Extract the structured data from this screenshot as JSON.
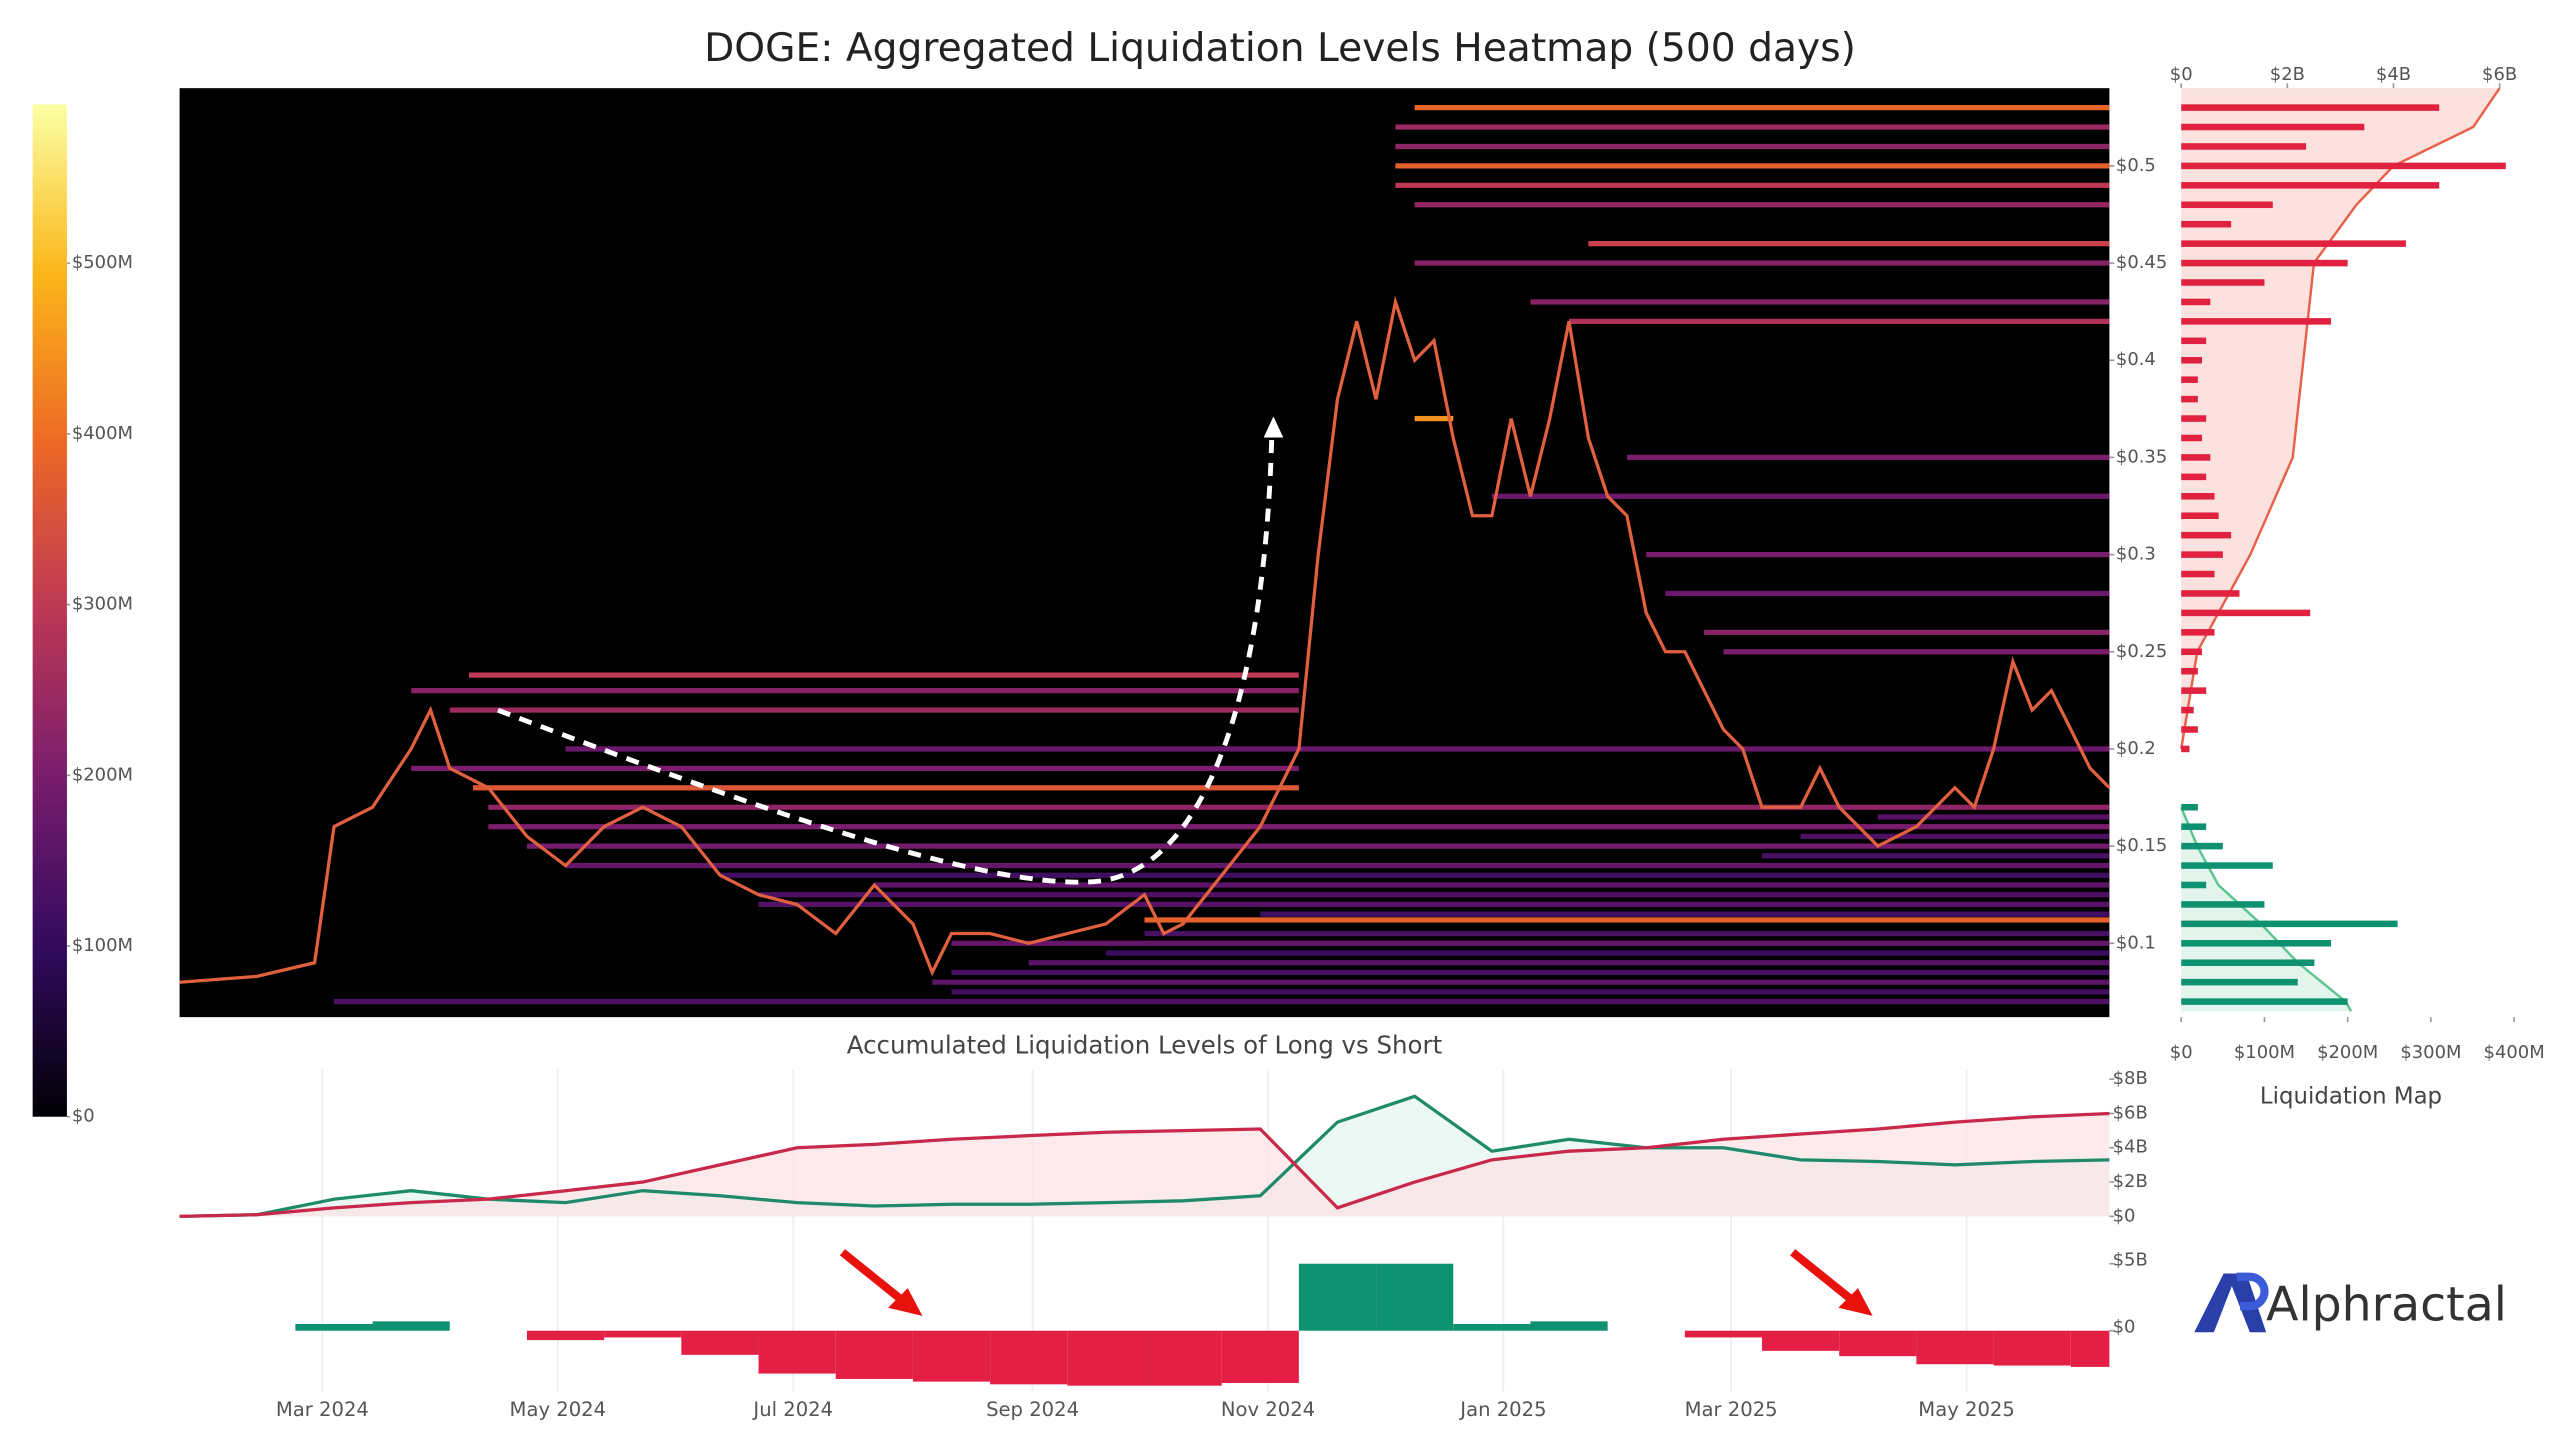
{
  "chart_data": [
    {
      "type": "heatmap",
      "title": "DOGE: Aggregated Liquidation Levels Heatmap (500 days)",
      "color": "#e0603f",
      "xlim": [
        0,
        500
      ],
      "ylim": [
        0.062,
        0.54
      ],
      "yticks": [
        {
          "value": 0.1,
          "label": "$0.1"
        },
        {
          "value": 0.15,
          "label": "$0.15"
        },
        {
          "value": 0.2,
          "label": "$0.2"
        },
        {
          "value": 0.25,
          "label": "$0.25"
        },
        {
          "value": 0.3,
          "label": "$0.3"
        },
        {
          "value": 0.35,
          "label": "$0.35"
        },
        {
          "value": 0.4,
          "label": "$0.4"
        },
        {
          "value": 0.45,
          "label": "$0.45"
        },
        {
          "value": 0.5,
          "label": "$0.5"
        }
      ],
      "x": [
        0,
        20,
        35,
        40,
        50,
        60,
        65,
        70,
        80,
        90,
        100,
        110,
        120,
        130,
        140,
        150,
        160,
        170,
        180,
        190,
        195,
        200,
        210,
        220,
        230,
        240,
        250,
        255,
        260,
        270,
        280,
        290,
        295,
        300,
        305,
        310,
        315,
        320,
        325,
        330,
        335,
        340,
        345,
        350,
        355,
        360,
        365,
        370,
        375,
        380,
        385,
        390,
        395,
        400,
        405,
        410,
        420,
        425,
        430,
        440,
        450,
        460,
        465,
        470,
        475,
        480,
        485,
        490,
        495,
        500
      ],
      "values": [
        0.08,
        0.083,
        0.09,
        0.16,
        0.17,
        0.2,
        0.22,
        0.19,
        0.18,
        0.155,
        0.14,
        0.16,
        0.17,
        0.16,
        0.135,
        0.125,
        0.12,
        0.105,
        0.13,
        0.11,
        0.085,
        0.105,
        0.105,
        0.1,
        0.105,
        0.11,
        0.125,
        0.105,
        0.11,
        0.135,
        0.16,
        0.2,
        0.3,
        0.38,
        0.42,
        0.38,
        0.43,
        0.4,
        0.41,
        0.36,
        0.32,
        0.32,
        0.37,
        0.33,
        0.37,
        0.42,
        0.36,
        0.33,
        0.32,
        0.27,
        0.25,
        0.25,
        0.23,
        0.21,
        0.2,
        0.17,
        0.17,
        0.19,
        0.17,
        0.15,
        0.16,
        0.18,
        0.17,
        0.2,
        0.245,
        0.22,
        0.23,
        0.21,
        0.19,
        0.18
      ],
      "levels": [
        {
          "price": 0.07,
          "value": 140,
          "start": 40,
          "end": 500
        },
        {
          "price": 0.075,
          "value": 120,
          "start": 200,
          "end": 500
        },
        {
          "price": 0.08,
          "value": 160,
          "start": 195,
          "end": 500
        },
        {
          "price": 0.085,
          "value": 130,
          "start": 200,
          "end": 500
        },
        {
          "price": 0.09,
          "value": 150,
          "start": 220,
          "end": 500
        },
        {
          "price": 0.095,
          "value": 110,
          "start": 240,
          "end": 500
        },
        {
          "price": 0.1,
          "value": 170,
          "start": 200,
          "end": 500
        },
        {
          "price": 0.105,
          "value": 130,
          "start": 250,
          "end": 500
        },
        {
          "price": 0.112,
          "value": 380,
          "start": 250,
          "end": 500
        },
        {
          "price": 0.115,
          "value": 120,
          "start": 280,
          "end": 500
        },
        {
          "price": 0.12,
          "value": 150,
          "start": 150,
          "end": 500
        },
        {
          "price": 0.125,
          "value": 140,
          "start": 150,
          "end": 500
        },
        {
          "price": 0.13,
          "value": 160,
          "start": 180,
          "end": 500
        },
        {
          "price": 0.135,
          "value": 120,
          "start": 140,
          "end": 500
        },
        {
          "price": 0.14,
          "value": 170,
          "start": 100,
          "end": 500
        },
        {
          "price": 0.145,
          "value": 130,
          "start": 410,
          "end": 500
        },
        {
          "price": 0.15,
          "value": 190,
          "start": 90,
          "end": 500
        },
        {
          "price": 0.155,
          "value": 140,
          "start": 420,
          "end": 500
        },
        {
          "price": 0.16,
          "value": 200,
          "start": 80,
          "end": 500
        },
        {
          "price": 0.165,
          "value": 150,
          "start": 440,
          "end": 500
        },
        {
          "price": 0.17,
          "value": 230,
          "start": 80,
          "end": 500
        },
        {
          "price": 0.18,
          "value": 360,
          "start": 76,
          "end": 290
        },
        {
          "price": 0.19,
          "value": 200,
          "start": 60,
          "end": 290
        },
        {
          "price": 0.2,
          "value": 180,
          "start": 100,
          "end": 500
        },
        {
          "price": 0.22,
          "value": 250,
          "start": 70,
          "end": 290
        },
        {
          "price": 0.23,
          "value": 220,
          "start": 60,
          "end": 290
        },
        {
          "price": 0.238,
          "value": 300,
          "start": 75,
          "end": 290
        },
        {
          "price": 0.25,
          "value": 200,
          "start": 400,
          "end": 500
        },
        {
          "price": 0.26,
          "value": 220,
          "start": 395,
          "end": 500
        },
        {
          "price": 0.28,
          "value": 180,
          "start": 385,
          "end": 500
        },
        {
          "price": 0.3,
          "value": 200,
          "start": 380,
          "end": 500
        },
        {
          "price": 0.33,
          "value": 180,
          "start": 340,
          "end": 500
        },
        {
          "price": 0.35,
          "value": 200,
          "start": 375,
          "end": 500
        },
        {
          "price": 0.37,
          "value": 450,
          "start": 320,
          "end": 330
        },
        {
          "price": 0.42,
          "value": 280,
          "start": 360,
          "end": 500
        },
        {
          "price": 0.43,
          "value": 220,
          "start": 350,
          "end": 500
        },
        {
          "price": 0.45,
          "value": 220,
          "start": 320,
          "end": 500
        },
        {
          "price": 0.46,
          "value": 320,
          "start": 365,
          "end": 500
        },
        {
          "price": 0.48,
          "value": 240,
          "start": 320,
          "end": 500
        },
        {
          "price": 0.49,
          "value": 300,
          "start": 315,
          "end": 500
        },
        {
          "price": 0.5,
          "value": 380,
          "start": 315,
          "end": 500
        },
        {
          "price": 0.51,
          "value": 230,
          "start": 315,
          "end": 500
        },
        {
          "price": 0.52,
          "value": 250,
          "start": 315,
          "end": 500
        },
        {
          "price": 0.53,
          "value": 390,
          "start": 320,
          "end": 500
        }
      ],
      "colorscale": [
        "#000004",
        "#320a5e",
        "#781c6d",
        "#bc3754",
        "#ed6925",
        "#fbb61a",
        "#fcffa4"
      ],
      "clim": [
        0,
        593
      ],
      "cticks": [
        {
          "value": 0,
          "label": "$0"
        },
        {
          "value": 100,
          "label": "$100M"
        },
        {
          "value": 200,
          "label": "$200M"
        },
        {
          "value": 300,
          "label": "$300M"
        },
        {
          "value": 400,
          "label": "$400M"
        },
        {
          "value": 500,
          "label": "$500M"
        }
      ]
    },
    {
      "type": "hbar",
      "xlabel": "Liquidation Map",
      "ylim": [
        0.062,
        0.54
      ],
      "xlim": [
        0,
        410
      ],
      "xticks": [
        {
          "value": 0,
          "label": "$0"
        },
        {
          "value": 100,
          "label": "$100M"
        },
        {
          "value": 200,
          "label": "$200M"
        },
        {
          "value": 300,
          "label": "$300M"
        },
        {
          "value": 400,
          "label": "$400M"
        }
      ],
      "x2lim": [
        0,
        6.43
      ],
      "x2ticks": [
        {
          "value": 0,
          "label": "$0"
        },
        {
          "value": 2,
          "label": "$2B"
        },
        {
          "value": 4,
          "label": "$4B"
        },
        {
          "value": 6,
          "label": "$6B"
        }
      ],
      "short": {
        "color": "#e0213f",
        "prices": [
          0.2,
          0.21,
          0.22,
          0.23,
          0.24,
          0.25,
          0.26,
          0.27,
          0.28,
          0.29,
          0.3,
          0.31,
          0.32,
          0.33,
          0.34,
          0.35,
          0.36,
          0.37,
          0.38,
          0.39,
          0.4,
          0.41,
          0.42,
          0.43,
          0.44,
          0.45,
          0.46,
          0.47,
          0.48,
          0.49,
          0.5,
          0.51,
          0.52,
          0.53
        ],
        "values": [
          10,
          20,
          15,
          30,
          20,
          25,
          40,
          155,
          70,
          40,
          50,
          60,
          45,
          40,
          30,
          35,
          25,
          30,
          20,
          20,
          25,
          30,
          180,
          35,
          100,
          200,
          270,
          60,
          110,
          310,
          390,
          150,
          220,
          310
        ]
      },
      "long": {
        "color": "#0e9170",
        "prices": [
          0.07,
          0.08,
          0.09,
          0.1,
          0.11,
          0.12,
          0.13,
          0.14,
          0.15,
          0.16,
          0.17
        ],
        "values": [
          200,
          140,
          160,
          180,
          260,
          100,
          30,
          110,
          50,
          30,
          20
        ]
      },
      "short_cum": {
        "color": "#e8604a",
        "prices": [
          0.2,
          0.25,
          0.3,
          0.35,
          0.4,
          0.45,
          0.48,
          0.5,
          0.52,
          0.54
        ],
        "values": [
          0,
          0.3,
          1.3,
          2.1,
          2.3,
          2.5,
          3.3,
          4.0,
          5.5,
          6.0
        ]
      },
      "long_cum": {
        "color": "#5cc48e",
        "prices": [
          0.17,
          0.15,
          0.13,
          0.11,
          0.09,
          0.07,
          0.065
        ],
        "values": [
          0,
          0.3,
          0.7,
          1.5,
          2.2,
          3.1,
          3.2
        ]
      }
    },
    {
      "type": "area",
      "title": "Accumulated Liquidation Levels of Long vs Short",
      "xlim": [
        0,
        500
      ],
      "ylim": [
        0,
        8
      ],
      "yticks": [
        {
          "value": 0,
          "label": "$0"
        },
        {
          "value": 2,
          "label": "$2B"
        },
        {
          "value": 4,
          "label": "$4B"
        },
        {
          "value": 6,
          "label": "$6B"
        },
        {
          "value": 8,
          "label": "$8B"
        }
      ],
      "x": [
        0,
        20,
        40,
        60,
        80,
        100,
        120,
        140,
        160,
        180,
        200,
        220,
        240,
        260,
        280,
        300,
        320,
        340,
        360,
        380,
        400,
        420,
        440,
        460,
        480,
        500
      ],
      "series": [
        {
          "color": "#1e8a6a",
          "fill": "#e6f6ef",
          "values": [
            0,
            0.1,
            1.0,
            1.5,
            1.0,
            0.8,
            1.5,
            1.2,
            0.8,
            0.6,
            0.7,
            0.7,
            0.8,
            0.9,
            1.2,
            5.5,
            7.0,
            3.8,
            4.5,
            4.0,
            4.0,
            3.3,
            3.2,
            3.0,
            3.2,
            3.3
          ]
        },
        {
          "color": "#c8284a",
          "fill": "#fbe3e6",
          "values": [
            0,
            0.1,
            0.5,
            0.8,
            1.0,
            1.5,
            2.0,
            3.0,
            4.0,
            4.2,
            4.5,
            4.7,
            4.9,
            5.0,
            5.1,
            0.5,
            2.0,
            3.3,
            3.8,
            4.0,
            4.5,
            4.8,
            5.1,
            5.5,
            5.8,
            6.0
          ]
        }
      ]
    },
    {
      "type": "bar",
      "xlim": [
        0,
        500
      ],
      "ylim": [
        -4.5,
        6.1
      ],
      "yticks": [
        {
          "value": 0,
          "label": "$0"
        },
        {
          "value": 5,
          "label": "$5B"
        }
      ],
      "xticks": [
        {
          "value": 37,
          "label": "Mar 2024"
        },
        {
          "value": 98,
          "label": "May 2024"
        },
        {
          "value": 159,
          "label": "Jul 2024"
        },
        {
          "value": 221,
          "label": "Sep 2024"
        },
        {
          "value": 282,
          "label": "Nov 2024"
        },
        {
          "value": 343,
          "label": "Jan 2025"
        },
        {
          "value": 402,
          "label": "Mar 2025"
        },
        {
          "value": 463,
          "label": "May 2025"
        }
      ],
      "pos_color": "#0e9170",
      "neg_color": "#e31f45",
      "x": [
        0,
        20,
        40,
        60,
        80,
        100,
        120,
        140,
        160,
        180,
        200,
        220,
        240,
        260,
        280,
        300,
        320,
        340,
        360,
        380,
        400,
        420,
        440,
        460,
        480,
        500
      ],
      "values": [
        0,
        0,
        0.5,
        0.7,
        0,
        -0.7,
        -0.5,
        -1.8,
        -3.2,
        -3.6,
        -3.8,
        -4.0,
        -4.1,
        -4.1,
        -3.9,
        5.0,
        5.0,
        0.5,
        0.7,
        0,
        -0.5,
        -1.5,
        -1.9,
        -2.5,
        -2.6,
        -2.7
      ]
    }
  ],
  "logo": "Alphractal"
}
